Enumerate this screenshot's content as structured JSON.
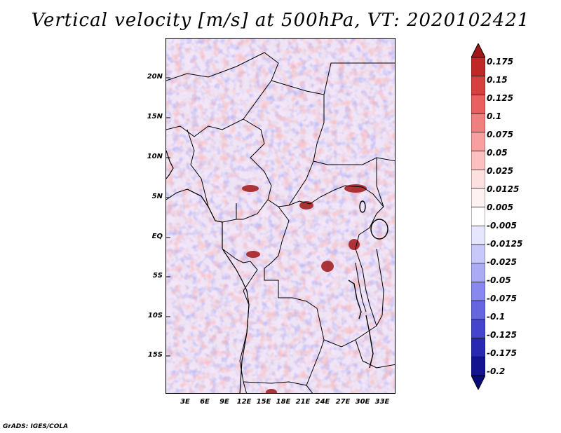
{
  "title": "Vertical velocity [m/s] at 500hPa, VT: 2020102421",
  "credit": "GrADS: IGES/COLA",
  "map": {
    "variable": "Vertical velocity",
    "units": "m/s",
    "level": "500hPa",
    "valid_time": "2020102421",
    "lat_labels": [
      "20N",
      "15N",
      "10N",
      "5N",
      "EQ",
      "5S",
      "10S",
      "15S"
    ],
    "lon_labels": [
      "3E",
      "6E",
      "9E",
      "12E",
      "15E",
      "18E",
      "21E",
      "24E",
      "27E",
      "30E",
      "33E"
    ]
  },
  "colorbar": {
    "levels": [
      "0.175",
      "0.15",
      "0.125",
      "0.1",
      "0.075",
      "0.05",
      "0.025",
      "0.0125",
      "0.005",
      "-0.005",
      "-0.0125",
      "-0.025",
      "-0.05",
      "-0.075",
      "-0.1",
      "-0.125",
      "-0.175",
      "-0.2"
    ],
    "colors": [
      "#a01818",
      "#c02828",
      "#d84040",
      "#e86060",
      "#f08080",
      "#f8a0a0",
      "#fcc0c0",
      "#fde0e0",
      "#fff2f2",
      "#ffffff",
      "#e6e6ff",
      "#c8c8fa",
      "#aaaaf5",
      "#8888ee",
      "#6666e0",
      "#4444cc",
      "#2828b0",
      "#141490",
      "#0a0a78"
    ]
  }
}
